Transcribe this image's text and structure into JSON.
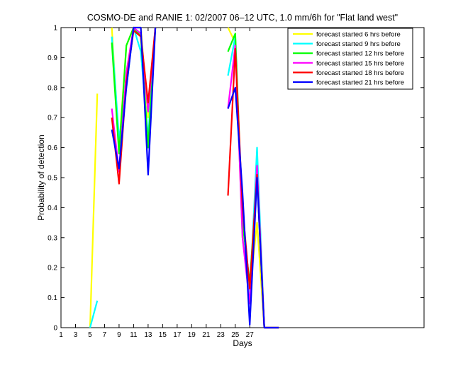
{
  "chart_data": {
    "type": "line",
    "title": "COSMO-DE and RANIE 1: 02/2007 06–12 UTC, 1.0 mm/6h for \"Flat land west\"",
    "xlabel": "Days",
    "ylabel": "Probability of detection",
    "xlim": [
      1,
      51
    ],
    "ylim": [
      0,
      1
    ],
    "xticks": [
      1,
      3,
      5,
      7,
      9,
      11,
      13,
      15,
      17,
      19,
      21,
      23,
      25,
      27
    ],
    "xtick_labels": [
      "1",
      "3",
      "5",
      "7",
      "9",
      "11",
      "13",
      "15",
      "17",
      "19",
      "21",
      "23",
      "25",
      "27"
    ],
    "yticks": [
      0,
      0.1,
      0.2,
      0.3,
      0.4,
      0.5,
      0.6,
      0.7,
      0.8,
      0.9,
      1
    ],
    "ytick_labels": [
      "0",
      "0.1",
      "0.2",
      "0.3",
      "0.4",
      "0.5",
      "0.6",
      "0.7",
      "0.8",
      "0.9",
      "1"
    ],
    "legend_position": "top-right",
    "series": [
      {
        "name": "forecast started 6 hrs before",
        "color": "#ffff00",
        "segments": [
          [
            [
              5,
              0
            ],
            [
              6,
              0.78
            ]
          ],
          [
            [
              8,
              1.0
            ],
            [
              9,
              0.6
            ],
            [
              10,
              0.94
            ],
            [
              11,
              1.0
            ],
            [
              12,
              1.0
            ],
            [
              13,
              0.7
            ],
            [
              14,
              1.0
            ]
          ],
          [
            [
              24,
              1.0
            ],
            [
              25,
              0.95
            ],
            [
              26,
              0.3
            ],
            [
              27,
              0.12
            ],
            [
              28,
              0.35
            ],
            [
              29,
              0
            ],
            [
              31,
              0
            ]
          ]
        ]
      },
      {
        "name": "forecast started 9 hrs before",
        "color": "#00ffff",
        "segments": [
          [
            [
              5,
              0
            ],
            [
              6,
              0.09
            ]
          ],
          [
            [
              8,
              0.97
            ],
            [
              9,
              0.63
            ],
            [
              10,
              0.8
            ],
            [
              11,
              1.0
            ],
            [
              12,
              0.92
            ],
            [
              13,
              0.63
            ],
            [
              14,
              1.0
            ]
          ],
          [
            [
              24,
              0.84
            ],
            [
              25,
              0.97
            ],
            [
              26,
              0.3
            ],
            [
              27,
              0.1
            ],
            [
              28,
              0.6
            ],
            [
              29,
              0
            ],
            [
              31,
              0
            ]
          ]
        ]
      },
      {
        "name": "forecast started 12 hrs before",
        "color": "#00ff00",
        "segments": [
          [
            [
              8,
              0.95
            ],
            [
              9,
              0.58
            ],
            [
              10,
              0.94
            ],
            [
              11,
              1.0
            ],
            [
              12,
              0.97
            ],
            [
              13,
              0.6
            ],
            [
              14,
              1.0
            ]
          ],
          [
            [
              24,
              0.92
            ],
            [
              25,
              0.98
            ],
            [
              26,
              0.35
            ],
            [
              27,
              0.15
            ],
            [
              28,
              0.5
            ],
            [
              29,
              0
            ],
            [
              31,
              0
            ]
          ]
        ]
      },
      {
        "name": "forecast started 15 hrs before",
        "color": "#ff00ff",
        "segments": [
          [
            [
              8,
              0.73
            ],
            [
              9,
              0.52
            ],
            [
              10,
              0.85
            ],
            [
              11,
              1.0
            ],
            [
              12,
              0.98
            ],
            [
              13,
              0.72
            ],
            [
              14,
              1.0
            ]
          ],
          [
            [
              24,
              0.73
            ],
            [
              25,
              0.94
            ],
            [
              26,
              0.3
            ],
            [
              27,
              0.08
            ],
            [
              28,
              0.54
            ],
            [
              29,
              0
            ],
            [
              31,
              0
            ]
          ]
        ]
      },
      {
        "name": "forecast started 18 hrs before",
        "color": "#ff0000",
        "segments": [
          [
            [
              8,
              0.7
            ],
            [
              9,
              0.48
            ],
            [
              10,
              0.82
            ],
            [
              11,
              0.99
            ],
            [
              12,
              0.97
            ],
            [
              13,
              0.75
            ],
            [
              14,
              1.0
            ]
          ],
          [
            [
              24,
              0.44
            ],
            [
              25,
              0.93
            ],
            [
              26,
              0.4
            ],
            [
              27,
              0.13
            ],
            [
              28,
              0.51
            ],
            [
              29,
              0
            ],
            [
              31,
              0
            ]
          ]
        ]
      },
      {
        "name": "forecast started 21 hrs before",
        "color": "#0000ff",
        "segments": [
          [
            [
              8,
              0.66
            ],
            [
              9,
              0.53
            ],
            [
              10,
              0.8
            ],
            [
              11,
              1.0
            ],
            [
              12,
              1.0
            ],
            [
              13,
              0.51
            ],
            [
              14,
              1.0
            ]
          ],
          [
            [
              24,
              0.73
            ],
            [
              25,
              0.8
            ],
            [
              26,
              0.45
            ],
            [
              27,
              0.01
            ],
            [
              28,
              0.5
            ],
            [
              29,
              0
            ],
            [
              31,
              0
            ]
          ]
        ]
      }
    ]
  }
}
